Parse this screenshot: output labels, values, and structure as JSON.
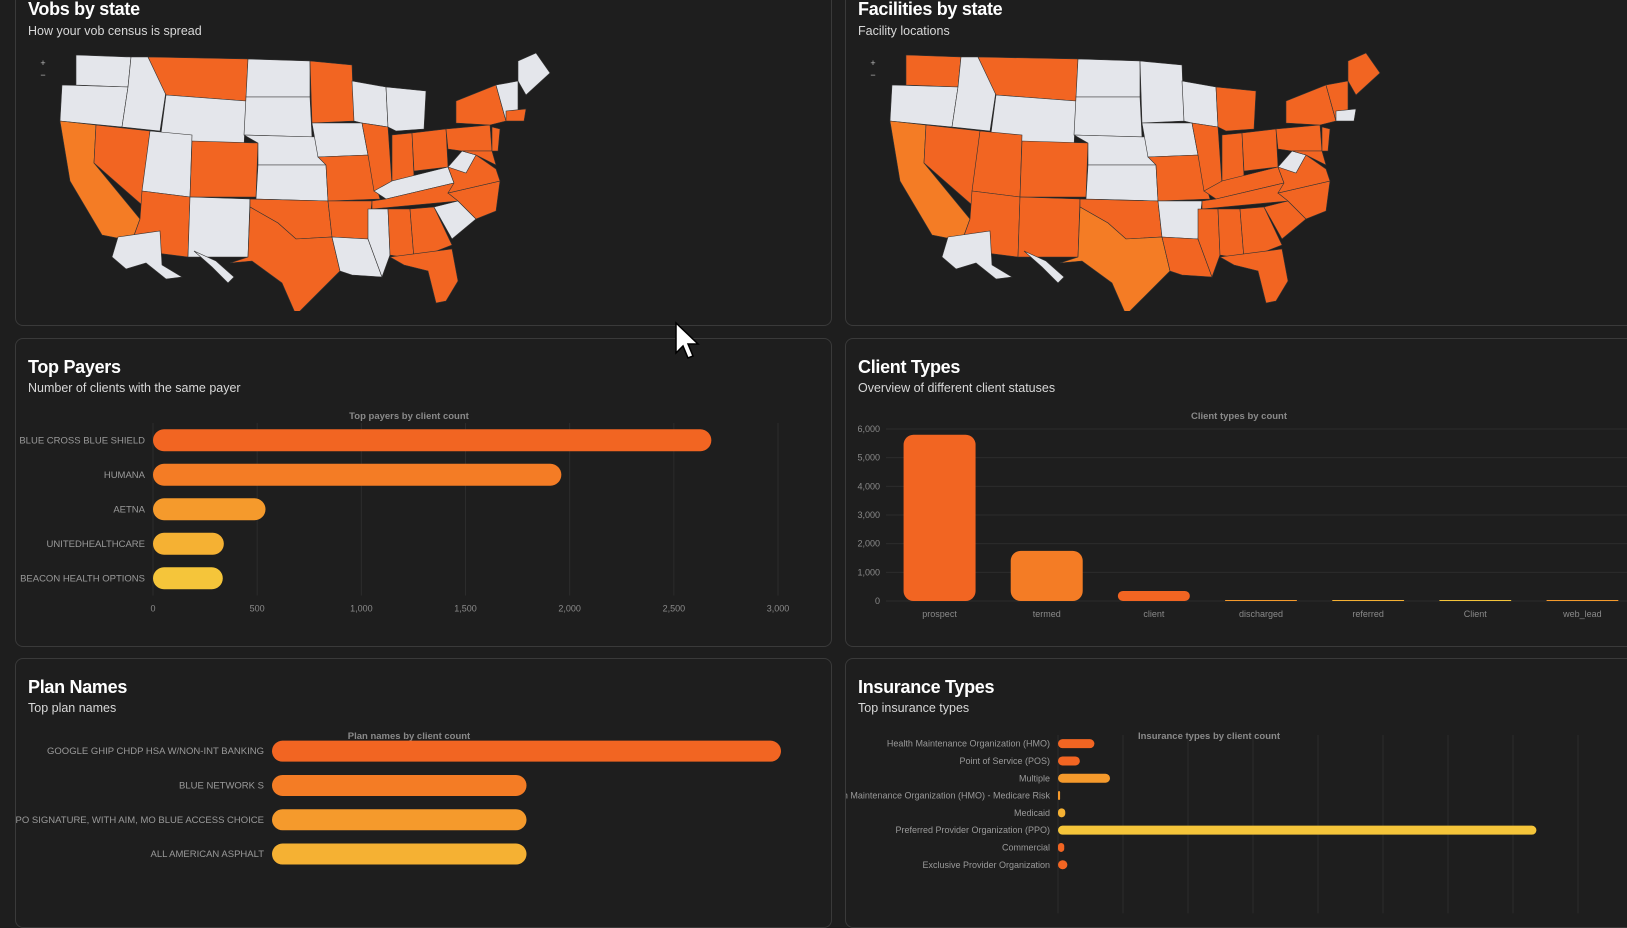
{
  "colors": {
    "bg": "#1e1e1e",
    "card_border": "#3a3a3a",
    "orange1": "#f26522",
    "orange2": "#f47c25",
    "orange3": "#f59a2c",
    "orange4": "#f5b133",
    "yellow": "#f5c53a",
    "state_grey": "#e4e6eb"
  },
  "vobs": {
    "title": "Vobs by state",
    "subtitle": "How your vob census is spread",
    "zoom_in": "+",
    "zoom_out": "−"
  },
  "facilities": {
    "title": "Facilities by state",
    "subtitle": "Facility locations",
    "zoom_in": "+",
    "zoom_out": "−"
  },
  "payers": {
    "title": "Top Payers",
    "subtitle": "Number of clients with the same payer"
  },
  "client_types": {
    "title": "Client Types",
    "subtitle": "Overview of different client statuses"
  },
  "plans": {
    "title": "Plan Names",
    "subtitle": "Top plan names"
  },
  "insurance": {
    "title": "Insurance Types",
    "subtitle": "Top insurance types"
  },
  "chart_data": [
    {
      "type": "bar",
      "orientation": "horizontal",
      "title": "Top payers by client count",
      "categories": [
        "BLUE CROSS BLUE SHIELD",
        "HUMANA",
        "AETNA",
        "UNITEDHEALTHCARE",
        "BEACON HEALTH OPTIONS"
      ],
      "values": [
        2680,
        1960,
        540,
        340,
        335
      ],
      "xlim": [
        0,
        3000
      ],
      "xticks": [
        "0",
        "500",
        "1,000",
        "1,500",
        "2,000",
        "2,500",
        "3,000"
      ]
    },
    {
      "type": "bar",
      "orientation": "vertical",
      "title": "Client types by count",
      "categories": [
        "prospect",
        "termed",
        "client",
        "discharged",
        "referred",
        "Client",
        "web_lead"
      ],
      "values": [
        5800,
        1750,
        350,
        30,
        5,
        2,
        10
      ],
      "ylim": [
        0,
        6000
      ],
      "yticks": [
        "0",
        "1,000",
        "2,000",
        "3,000",
        "4,000",
        "5,000",
        "6,000"
      ]
    },
    {
      "type": "bar",
      "orientation": "horizontal",
      "title": "Plan names by client count",
      "categories": [
        "GOOGLE GHIP CHDP HSA W/NON-INT BANKING",
        "BLUE NETWORK S",
        "PPO SIGNATURE, WITH AIM, MO BLUE ACCESS CHOICE",
        "ALL AMERICAN ASPHALT"
      ],
      "values": [
        100,
        50,
        50,
        50
      ],
      "xlim": [
        0,
        100
      ]
    },
    {
      "type": "bar",
      "orientation": "horizontal",
      "title": "Insurance types by client count",
      "categories": [
        "Health Maintenance Organization (HMO)",
        "Point of Service (POS)",
        "Multiple",
        "Health Maintenance Organization (HMO) - Medicare Risk",
        "Medicaid",
        "Preferred Provider Organization (PPO)",
        "Commercial",
        "Exclusive Provider Organization"
      ],
      "values": [
        70,
        42,
        100,
        4,
        14,
        920,
        12,
        18
      ],
      "xlim": [
        0,
        1000
      ]
    }
  ]
}
